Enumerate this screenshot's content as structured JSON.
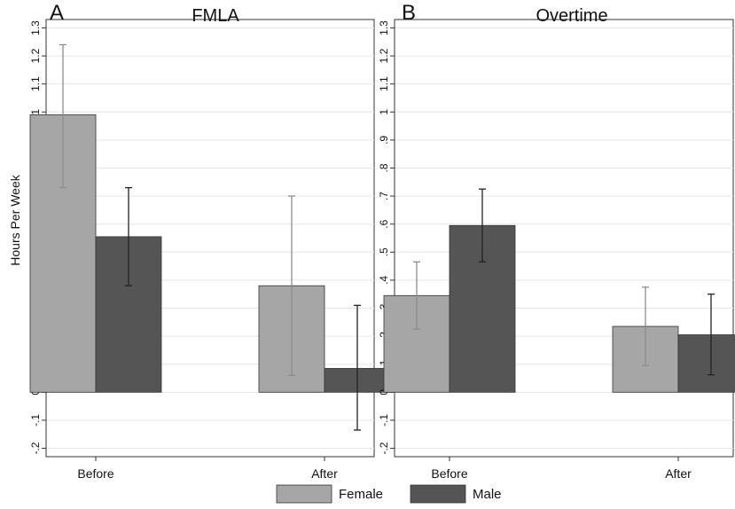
{
  "colors": {
    "female": "#a6a6a6",
    "male": "#555555",
    "grid": "#e6e6e6",
    "axis": "#333333",
    "error_female": "#8c8c8c",
    "error_male": "#222222"
  },
  "legend": {
    "items": [
      {
        "label": "Female",
        "color_key": "female"
      },
      {
        "label": "Male",
        "color_key": "male"
      }
    ],
    "placement": "bottom-center"
  },
  "chart_data": [
    {
      "type": "bar",
      "panel_letter": "A",
      "title": "FMLA",
      "ylabel": "Hours Per Week",
      "ylim": [
        -0.23,
        1.33
      ],
      "yticks": [
        -0.2,
        -0.1,
        0,
        0.1,
        0.2,
        0.3,
        0.4,
        0.5,
        0.6,
        0.7,
        0.8,
        0.9,
        1,
        1.1,
        1.2,
        1.3
      ],
      "ytick_labels": [
        "-.2",
        "-.1",
        "0",
        ".1",
        ".2",
        ".3",
        ".4",
        ".5",
        ".6",
        ".7",
        ".8",
        ".9",
        "1",
        "1.1",
        "1.2",
        "1.3"
      ],
      "grid": true,
      "categories": [
        "Before",
        "After"
      ],
      "series": [
        {
          "name": "Female",
          "values": [
            0.99,
            0.38
          ],
          "ci_low": [
            0.73,
            0.06
          ],
          "ci_high": [
            1.24,
            0.7
          ]
        },
        {
          "name": "Male",
          "values": [
            0.555,
            0.085
          ],
          "ci_low": [
            0.38,
            -0.135
          ],
          "ci_high": [
            0.73,
            0.31
          ]
        }
      ]
    },
    {
      "type": "bar",
      "panel_letter": "B",
      "title": "Overtime",
      "ylabel": "",
      "ylim": [
        -0.23,
        1.33
      ],
      "yticks": [
        -0.2,
        -0.1,
        0,
        0.1,
        0.2,
        0.3,
        0.4,
        0.5,
        0.6,
        0.7,
        0.8,
        0.9,
        1,
        1.1,
        1.2,
        1.3
      ],
      "ytick_labels": [
        "-.2",
        "-.1",
        "0",
        ".1",
        ".2",
        ".3",
        ".4",
        ".5",
        ".6",
        ".7",
        ".8",
        ".9",
        "1",
        "1.1",
        "1.2",
        "1.3"
      ],
      "grid": true,
      "categories": [
        "Before",
        "After"
      ],
      "series": [
        {
          "name": "Female",
          "values": [
            0.345,
            0.235
          ],
          "ci_low": [
            0.225,
            0.095
          ],
          "ci_high": [
            0.465,
            0.375
          ]
        },
        {
          "name": "Male",
          "values": [
            0.595,
            0.205
          ],
          "ci_low": [
            0.465,
            0.062
          ],
          "ci_high": [
            0.725,
            0.35
          ]
        }
      ]
    }
  ]
}
